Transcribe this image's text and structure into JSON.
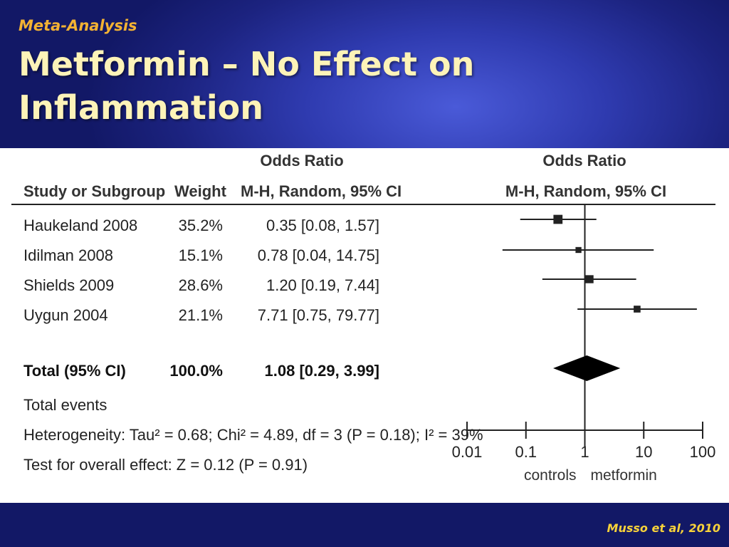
{
  "slide": {
    "kicker": "Meta-Analysis",
    "title": "Metformin – No Effect on Inflammation",
    "citation": "Musso et al,  2010"
  },
  "chart_data": {
    "type": "forest",
    "headers": {
      "study": "Study or Subgroup",
      "weight": "Weight",
      "or_top": "Odds Ratio",
      "or_method": "M-H, Random, 95% CI",
      "plot_top": "Odds Ratio",
      "plot_method": "M-H, Random, 95% CI"
    },
    "studies": [
      {
        "name": "Haukeland 2008",
        "weight": "35.2%",
        "ci_text": "0.35 [0.08, 1.57]",
        "or": 0.35,
        "low": 0.08,
        "high": 1.57,
        "weight_value": 35.2
      },
      {
        "name": "Idilman 2008",
        "weight": "15.1%",
        "ci_text": "0.78 [0.04, 14.75]",
        "or": 0.78,
        "low": 0.04,
        "high": 14.75,
        "weight_value": 15.1
      },
      {
        "name": "Shields 2009",
        "weight": "28.6%",
        "ci_text": "1.20 [0.19, 7.44]",
        "or": 1.2,
        "low": 0.19,
        "high": 7.44,
        "weight_value": 28.6
      },
      {
        "name": "Uygun 2004",
        "weight": "21.1%",
        "ci_text": "7.71 [0.75, 79.77]",
        "or": 7.71,
        "low": 0.75,
        "high": 79.77,
        "weight_value": 21.1
      }
    ],
    "total": {
      "name": "Total (95% CI)",
      "weight": "100.0%",
      "ci_text": "1.08 [0.29, 3.99]",
      "or": 1.08,
      "low": 0.29,
      "high": 3.99
    },
    "total_events": "Total events",
    "heterogeneity": "Heterogeneity: Tau² = 0.68; Chi² = 4.89, df = 3 (P = 0.18); I² = 39%",
    "overall_effect": "Test for overall effect: Z = 0.12 (P = 0.91)",
    "x_scale": "log",
    "x_ticks": [
      0.01,
      0.1,
      1,
      10,
      100
    ],
    "x_tick_labels": [
      "0.01",
      "0.1",
      "1",
      "10",
      "100"
    ],
    "xlim": [
      0.01,
      100
    ],
    "favours_left": "controls",
    "favours_right": "metformin"
  }
}
